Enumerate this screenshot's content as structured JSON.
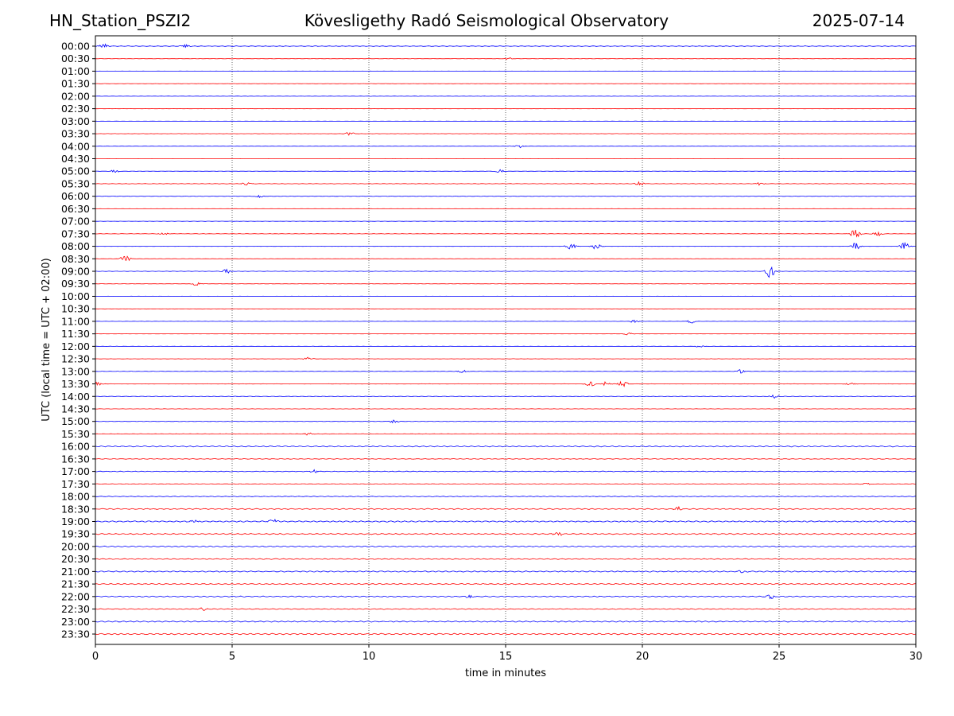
{
  "header": {
    "station": "HN_Station_PSZI2",
    "observatory": "Kövesligethy Radó Seismological Observatory",
    "date": "2025-07-14"
  },
  "colors": {
    "even_trace": "#0000ff",
    "odd_trace": "#ff0000",
    "grid": "#000000"
  },
  "chart_data": {
    "type": "line",
    "title": "Kövesligethy Radó Seismological Observatory",
    "xlabel": "time in minutes",
    "ylabel": "UTC (local time = UTC + 02:00)",
    "xlim": [
      0,
      30
    ],
    "x_ticks": [
      0,
      5,
      10,
      15,
      20,
      25,
      30
    ],
    "grid": "vertical dotted lines at 5-minute ticks",
    "row_labels": [
      "00:00",
      "00:30",
      "01:00",
      "01:30",
      "02:00",
      "02:30",
      "03:00",
      "03:30",
      "04:00",
      "04:30",
      "05:00",
      "05:30",
      "06:00",
      "06:30",
      "07:00",
      "07:30",
      "08:00",
      "08:30",
      "09:00",
      "09:30",
      "10:00",
      "10:30",
      "11:00",
      "11:30",
      "12:00",
      "12:30",
      "13:00",
      "13:30",
      "14:00",
      "14:30",
      "15:00",
      "15:30",
      "16:00",
      "16:30",
      "17:00",
      "17:30",
      "18:00",
      "18:30",
      "19:00",
      "19:30",
      "20:00",
      "20:30",
      "21:00",
      "21:30",
      "22:00",
      "22:30",
      "23:00",
      "23:30"
    ],
    "series_color_pattern": [
      "blue",
      "red"
    ],
    "background_noise_level": [
      0.3,
      0.15,
      0.15,
      0.15,
      0.15,
      0.1,
      0.1,
      0.15,
      0.15,
      0.1,
      0.15,
      0.2,
      0.2,
      0.15,
      0.15,
      0.2,
      0.15,
      0.1,
      0.2,
      0.15,
      0.15,
      0.1,
      0.15,
      0.1,
      0.15,
      0.15,
      0.2,
      0.2,
      0.25,
      0.15,
      0.25,
      0.25,
      0.6,
      0.35,
      0.4,
      0.3,
      0.35,
      0.55,
      0.7,
      0.6,
      0.6,
      0.5,
      0.65,
      0.6,
      0.55,
      0.5,
      0.65,
      0.75
    ],
    "events": [
      {
        "row": "00:00",
        "minute": 0.3,
        "amplitude": 0.6
      },
      {
        "row": "00:00",
        "minute": 3.3,
        "amplitude": 0.5
      },
      {
        "row": "00:30",
        "minute": 15.1,
        "amplitude": 0.35
      },
      {
        "row": "03:30",
        "minute": 9.3,
        "amplitude": 0.45
      },
      {
        "row": "04:00",
        "minute": 15.5,
        "amplitude": 0.4
      },
      {
        "row": "05:00",
        "minute": 14.8,
        "amplitude": 0.6
      },
      {
        "row": "05:00",
        "minute": 0.7,
        "amplitude": 0.4
      },
      {
        "row": "05:30",
        "minute": 5.5,
        "amplitude": 0.5
      },
      {
        "row": "05:30",
        "minute": 19.9,
        "amplitude": 0.6
      },
      {
        "row": "05:30",
        "minute": 24.3,
        "amplitude": 0.4
      },
      {
        "row": "06:00",
        "minute": 6.0,
        "amplitude": 0.35
      },
      {
        "row": "07:30",
        "minute": 2.5,
        "amplitude": 0.4
      },
      {
        "row": "07:30",
        "minute": 27.8,
        "amplitude": 1.6
      },
      {
        "row": "07:30",
        "minute": 28.6,
        "amplitude": 0.7
      },
      {
        "row": "08:00",
        "minute": 17.4,
        "amplitude": 0.9
      },
      {
        "row": "08:00",
        "minute": 18.3,
        "amplitude": 0.9
      },
      {
        "row": "08:00",
        "minute": 27.8,
        "amplitude": 1.1
      },
      {
        "row": "08:00",
        "minute": 29.6,
        "amplitude": 1.1
      },
      {
        "row": "08:30",
        "minute": 1.1,
        "amplitude": 1.3
      },
      {
        "row": "09:00",
        "minute": 4.8,
        "amplitude": 0.6
      },
      {
        "row": "09:00",
        "minute": 24.7,
        "amplitude": 2.1
      },
      {
        "row": "09:30",
        "minute": 3.7,
        "amplitude": 0.5
      },
      {
        "row": "11:00",
        "minute": 19.7,
        "amplitude": 0.4
      },
      {
        "row": "11:00",
        "minute": 21.8,
        "amplitude": 0.5
      },
      {
        "row": "11:30",
        "minute": 19.5,
        "amplitude": 0.35
      },
      {
        "row": "12:00",
        "minute": 22.1,
        "amplitude": 0.4
      },
      {
        "row": "12:30",
        "minute": 7.8,
        "amplitude": 0.6
      },
      {
        "row": "13:00",
        "minute": 13.4,
        "amplitude": 0.45
      },
      {
        "row": "13:00",
        "minute": 23.6,
        "amplitude": 0.55
      },
      {
        "row": "13:30",
        "minute": 0.1,
        "amplitude": 0.6
      },
      {
        "row": "13:30",
        "minute": 18.1,
        "amplitude": 0.8
      },
      {
        "row": "13:30",
        "minute": 18.7,
        "amplitude": 0.8
      },
      {
        "row": "13:30",
        "minute": 19.3,
        "amplitude": 1.1
      },
      {
        "row": "13:30",
        "minute": 27.6,
        "amplitude": 0.5
      },
      {
        "row": "14:00",
        "minute": 24.8,
        "amplitude": 0.5
      },
      {
        "row": "15:00",
        "minute": 10.9,
        "amplitude": 0.5
      },
      {
        "row": "15:30",
        "minute": 7.8,
        "amplitude": 0.35
      },
      {
        "row": "17:00",
        "minute": 8.0,
        "amplitude": 0.4
      },
      {
        "row": "17:30",
        "minute": 28.2,
        "amplitude": 0.4
      },
      {
        "row": "18:30",
        "minute": 21.3,
        "amplitude": 0.55
      },
      {
        "row": "19:00",
        "minute": 3.6,
        "amplitude": 0.7
      },
      {
        "row": "19:00",
        "minute": 6.5,
        "amplitude": 0.8
      },
      {
        "row": "19:30",
        "minute": 16.9,
        "amplitude": 0.6
      },
      {
        "row": "21:00",
        "minute": 23.7,
        "amplitude": 0.45
      },
      {
        "row": "22:00",
        "minute": 13.7,
        "amplitude": 0.5
      },
      {
        "row": "22:00",
        "minute": 24.7,
        "amplitude": 0.6
      },
      {
        "row": "22:30",
        "minute": 3.9,
        "amplitude": 0.45
      }
    ]
  }
}
